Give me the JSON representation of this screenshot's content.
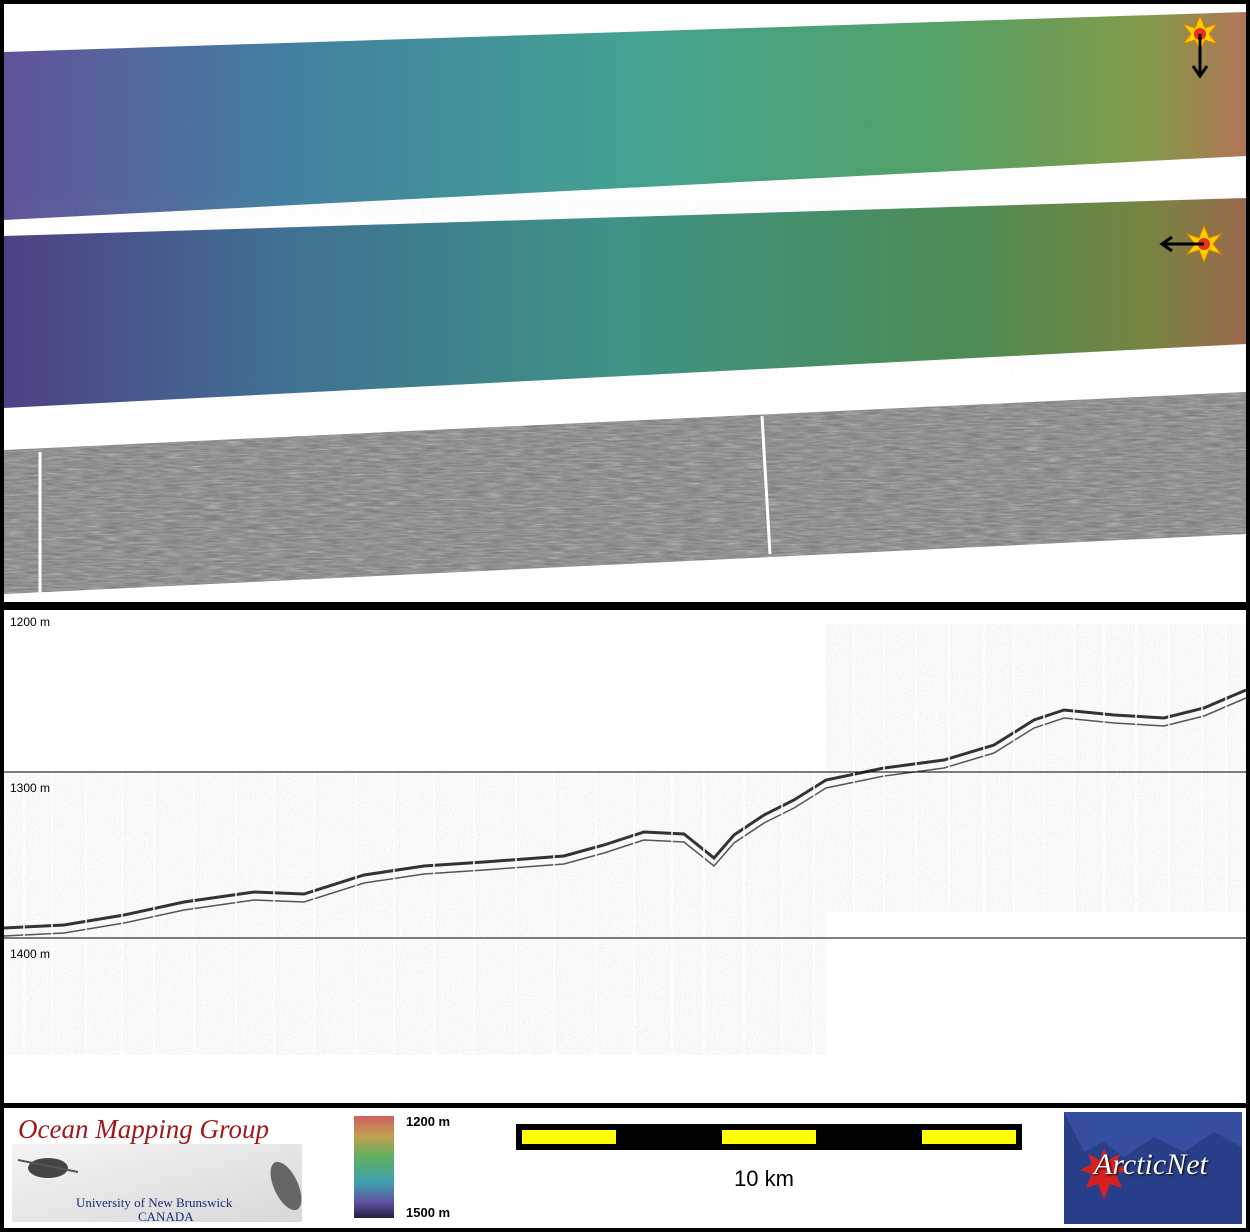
{
  "profile": {
    "depth_labels": [
      "1200 m",
      "1300 m",
      "1400 m"
    ]
  },
  "footer": {
    "logo_title": "Ocean Mapping Group",
    "logo_university": "University of New Brunswick",
    "logo_country": "CANADA",
    "colorbar_top": "1200 m",
    "colorbar_bottom": "1500 m",
    "scale_label": "10 km",
    "partner_logo": "ArcticNet"
  },
  "colors": {
    "background": "#000000",
    "scale_bar_dark": "#000000",
    "scale_bar_light": "#ffff00",
    "omg_title": "#a01818",
    "arcticnet_bg": "#2a3f8a",
    "maple_leaf": "#d42020"
  },
  "icons": {
    "sun_south": "sun-with-down-arrow-icon",
    "sun_west": "sun-with-left-arrow-icon"
  }
}
